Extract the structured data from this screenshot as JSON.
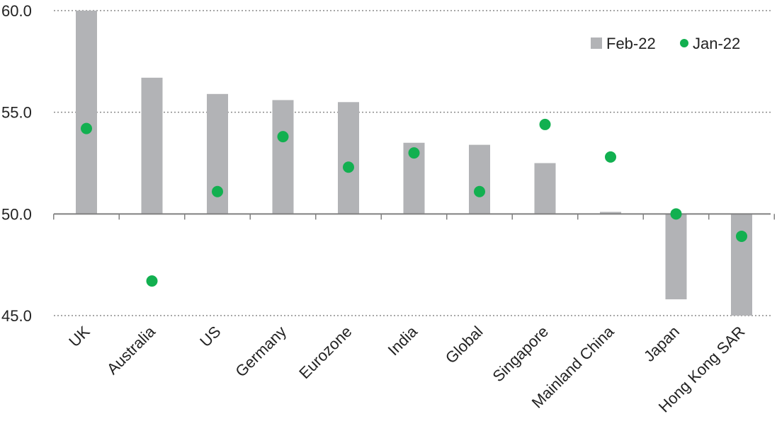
{
  "chart_data": {
    "type": "bar",
    "categories": [
      "UK",
      "Australia",
      "US",
      "Germany",
      "Eurozone",
      "India",
      "Global",
      "Singapore",
      "Mainland China",
      "Japan",
      "Hong Kong SAR"
    ],
    "series": [
      {
        "name": "Feb-22",
        "kind": "bar",
        "color": "#b2b3b6",
        "values": [
          60.0,
          56.7,
          55.9,
          55.6,
          55.5,
          53.5,
          53.4,
          52.5,
          50.1,
          45.8,
          45.0
        ]
      },
      {
        "name": "Jan-22",
        "kind": "marker",
        "color": "#12b050",
        "values": [
          54.2,
          46.7,
          51.1,
          53.8,
          52.3,
          53.0,
          51.1,
          54.4,
          52.8,
          50.0,
          48.9
        ]
      }
    ],
    "baseline": 50.0,
    "ylim": [
      45.0,
      60.0
    ],
    "yticks": [
      "60.0",
      "55.0",
      "50.0",
      "45.0"
    ],
    "title": "",
    "xlabel": "",
    "ylabel": "",
    "grid": "horizontal dotted",
    "legend_position": "top-right"
  }
}
